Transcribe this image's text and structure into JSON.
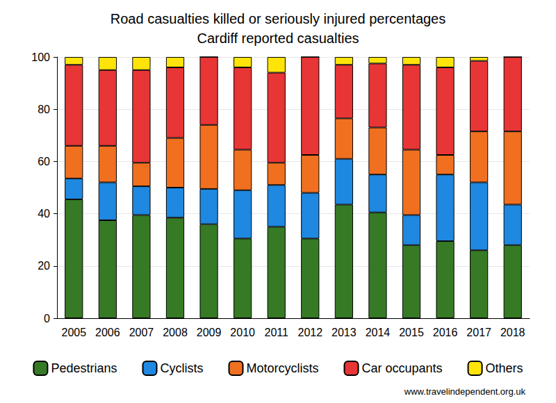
{
  "chart_data": {
    "type": "bar",
    "title": "Road casualties killed or seriously injured percentages",
    "subtitle": "Cardiff reported casualties",
    "annotation": "www.travelindependent.org.uk",
    "categories": [
      "2005",
      "2006",
      "2007",
      "2008",
      "2009",
      "2010",
      "2011",
      "2012",
      "2013",
      "2014",
      "2015",
      "2016",
      "2017",
      "2018"
    ],
    "series": [
      {
        "name": "Pedestrians",
        "color": "#367a26",
        "values": [
          45.5,
          37.5,
          39.5,
          38.5,
          36,
          30.5,
          35,
          30.5,
          43.5,
          40.5,
          28,
          29.5,
          26,
          28
        ]
      },
      {
        "name": "Cyclists",
        "color": "#1f88e0",
        "values": [
          8,
          14.5,
          11,
          11.5,
          13.5,
          18.5,
          16,
          17.5,
          17.5,
          14.5,
          11.5,
          25.5,
          26,
          15.5
        ]
      },
      {
        "name": "Motorcyclists",
        "color": "#f07020",
        "values": [
          12.5,
          14,
          9,
          19,
          24.5,
          15.5,
          8.5,
          14.5,
          15.5,
          18,
          25,
          7.5,
          19.5,
          28
        ]
      },
      {
        "name": "Car occupants",
        "color": "#e83535",
        "values": [
          31,
          29,
          35.5,
          27,
          26,
          31.5,
          34.5,
          37.5,
          20.5,
          24.5,
          32.5,
          33.5,
          27,
          28.5
        ]
      },
      {
        "name": "Others",
        "color": "#ffe40a",
        "values": [
          3,
          5,
          5,
          4,
          0,
          4,
          6,
          0,
          3,
          2.5,
          3,
          4,
          1.5,
          0
        ]
      }
    ],
    "ylim": [
      0,
      100
    ],
    "yticks": [
      0,
      20,
      40,
      60,
      80,
      100
    ],
    "stacked": true,
    "grid": true,
    "legend": "bottom"
  }
}
